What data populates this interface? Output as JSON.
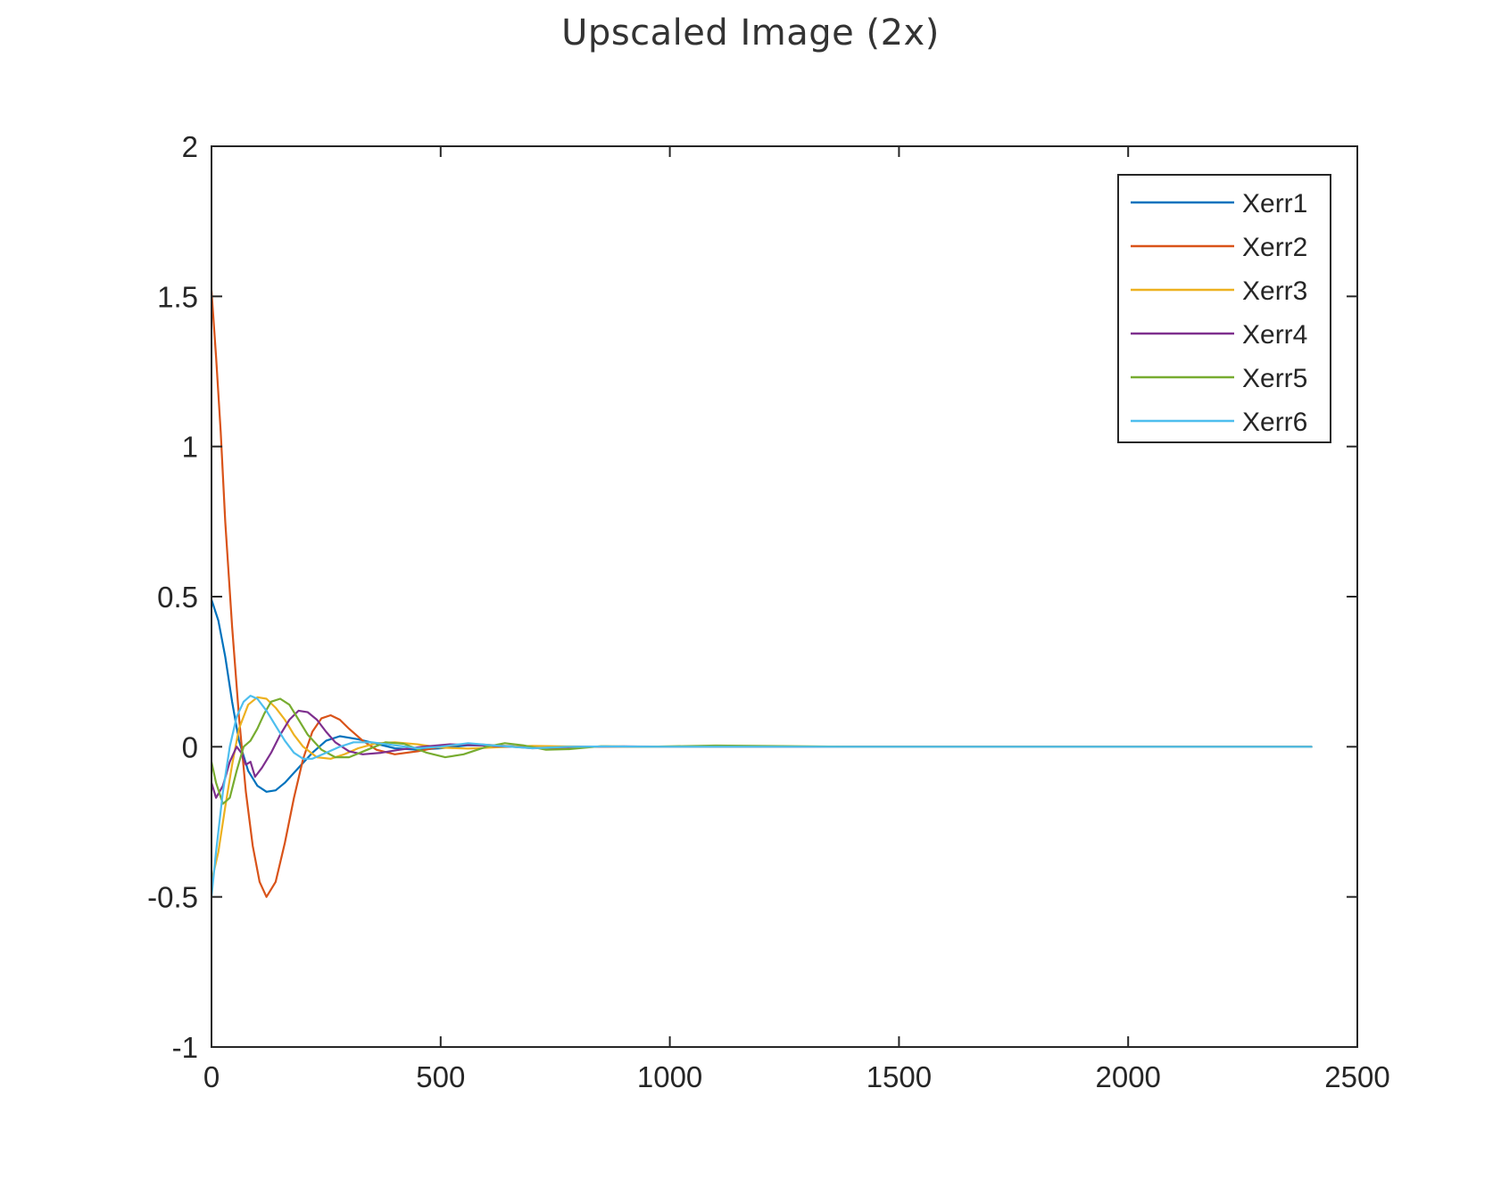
{
  "page": {
    "title": "Upscaled Image (2x)"
  },
  "chart_data": {
    "type": "line",
    "title": "",
    "xlabel": "",
    "ylabel": "",
    "xlim": [
      0,
      2500
    ],
    "ylim": [
      -1,
      2
    ],
    "xticks": [
      0,
      500,
      1000,
      1500,
      2000,
      2500
    ],
    "yticks": [
      -1,
      -0.5,
      0,
      0.5,
      1,
      1.5,
      2
    ],
    "xtick_labels": [
      "0",
      "500",
      "1000",
      "1500",
      "2000",
      "2500"
    ],
    "ytick_labels": [
      "-1",
      "-0.5",
      "0",
      "0.5",
      "1",
      "1.5",
      "2"
    ],
    "grid": false,
    "legend_position": "top-right",
    "series": [
      {
        "name": "Xerr1",
        "color": "#0072BD",
        "x": [
          0,
          15,
          30,
          45,
          60,
          80,
          100,
          120,
          140,
          160,
          190,
          220,
          250,
          280,
          320,
          360,
          400,
          450,
          500,
          560,
          620,
          680,
          750,
          820,
          900,
          1000,
          1150,
          1300,
          1600,
          2000,
          2400
        ],
        "y": [
          0.49,
          0.42,
          0.3,
          0.15,
          0.02,
          -0.08,
          -0.13,
          -0.15,
          -0.145,
          -0.12,
          -0.07,
          -0.02,
          0.02,
          0.035,
          0.025,
          0.01,
          -0.005,
          -0.01,
          -0.005,
          0.005,
          0.004,
          0.0,
          -0.002,
          0.0,
          0.001,
          0.0,
          0.001,
          0.0,
          0.0,
          0.0,
          0.0
        ]
      },
      {
        "name": "Xerr2",
        "color": "#D95319",
        "x": [
          0,
          10,
          20,
          30,
          45,
          60,
          75,
          90,
          105,
          120,
          140,
          160,
          180,
          200,
          220,
          240,
          260,
          280,
          300,
          330,
          360,
          400,
          450,
          500,
          560,
          620,
          700,
          780,
          860,
          950,
          1100,
          1300,
          1700,
          2100,
          2400
        ],
        "y": [
          1.52,
          1.3,
          1.05,
          0.75,
          0.4,
          0.1,
          -0.15,
          -0.33,
          -0.45,
          -0.5,
          -0.45,
          -0.32,
          -0.17,
          -0.04,
          0.05,
          0.095,
          0.105,
          0.09,
          0.06,
          0.02,
          -0.01,
          -0.025,
          -0.015,
          0.0,
          0.01,
          0.005,
          -0.005,
          -0.003,
          0.001,
          0.0,
          0.001,
          0.0,
          0.0,
          0.0,
          0.0
        ]
      },
      {
        "name": "Xerr3",
        "color": "#EDB120",
        "x": [
          0,
          15,
          30,
          45,
          60,
          80,
          100,
          120,
          140,
          160,
          180,
          200,
          230,
          260,
          290,
          320,
          360,
          400,
          450,
          500,
          560,
          620,
          700,
          780,
          860,
          1000,
          1200,
          1600,
          2000,
          2400
        ],
        "y": [
          -0.45,
          -0.35,
          -0.2,
          -0.06,
          0.06,
          0.14,
          0.165,
          0.16,
          0.13,
          0.09,
          0.04,
          0.0,
          -0.035,
          -0.04,
          -0.025,
          -0.005,
          0.012,
          0.015,
          0.008,
          -0.003,
          -0.006,
          -0.002,
          0.003,
          0.001,
          0.0,
          0.0,
          0.0,
          0.0,
          0.0,
          0.0
        ]
      },
      {
        "name": "Xerr4",
        "color": "#7E2F8E",
        "x": [
          0,
          10,
          25,
          40,
          55,
          65,
          75,
          85,
          95,
          110,
          130,
          150,
          170,
          190,
          210,
          230,
          250,
          270,
          300,
          330,
          370,
          410,
          460,
          520,
          580,
          650,
          720,
          800,
          900,
          1100,
          1400,
          1800,
          2400
        ],
        "y": [
          -0.12,
          -0.17,
          -0.13,
          -0.05,
          0.0,
          -0.02,
          -0.06,
          -0.05,
          -0.1,
          -0.07,
          -0.02,
          0.04,
          0.09,
          0.12,
          0.115,
          0.09,
          0.05,
          0.015,
          -0.015,
          -0.025,
          -0.02,
          -0.01,
          0.0,
          0.008,
          0.005,
          0.0,
          -0.004,
          0.0,
          0.001,
          0.0,
          0.0,
          0.0,
          0.0
        ]
      },
      {
        "name": "Xerr5",
        "color": "#77AC30",
        "x": [
          0,
          10,
          25,
          40,
          55,
          70,
          85,
          100,
          115,
          130,
          150,
          170,
          190,
          210,
          240,
          270,
          300,
          340,
          380,
          420,
          470,
          510,
          550,
          600,
          640,
          680,
          730,
          780,
          850,
          950,
          1100,
          1400,
          1800,
          2400
        ],
        "y": [
          -0.05,
          -0.12,
          -0.19,
          -0.17,
          -0.08,
          0.0,
          0.02,
          0.06,
          0.11,
          0.15,
          0.16,
          0.14,
          0.09,
          0.04,
          -0.01,
          -0.035,
          -0.035,
          -0.01,
          0.015,
          0.01,
          -0.02,
          -0.035,
          -0.025,
          0.0,
          0.012,
          0.005,
          -0.01,
          -0.008,
          0.002,
          0.0,
          0.004,
          0.0,
          0.0,
          0.0
        ]
      },
      {
        "name": "Xerr6",
        "color": "#4DBEEE",
        "x": [
          0,
          10,
          25,
          40,
          55,
          70,
          85,
          100,
          120,
          140,
          160,
          180,
          200,
          220,
          250,
          280,
          310,
          350,
          400,
          450,
          500,
          560,
          620,
          700,
          780,
          860,
          1000,
          1200,
          1600,
          2000,
          2400
        ],
        "y": [
          -0.5,
          -0.35,
          -0.15,
          0.0,
          0.1,
          0.15,
          0.17,
          0.16,
          0.12,
          0.07,
          0.02,
          -0.02,
          -0.04,
          -0.04,
          -0.02,
          0.0,
          0.015,
          0.015,
          0.005,
          -0.005,
          0.0,
          0.012,
          0.004,
          -0.005,
          0.0,
          0.001,
          0.0,
          0.0,
          0.0,
          0.0,
          0.0
        ]
      }
    ]
  }
}
